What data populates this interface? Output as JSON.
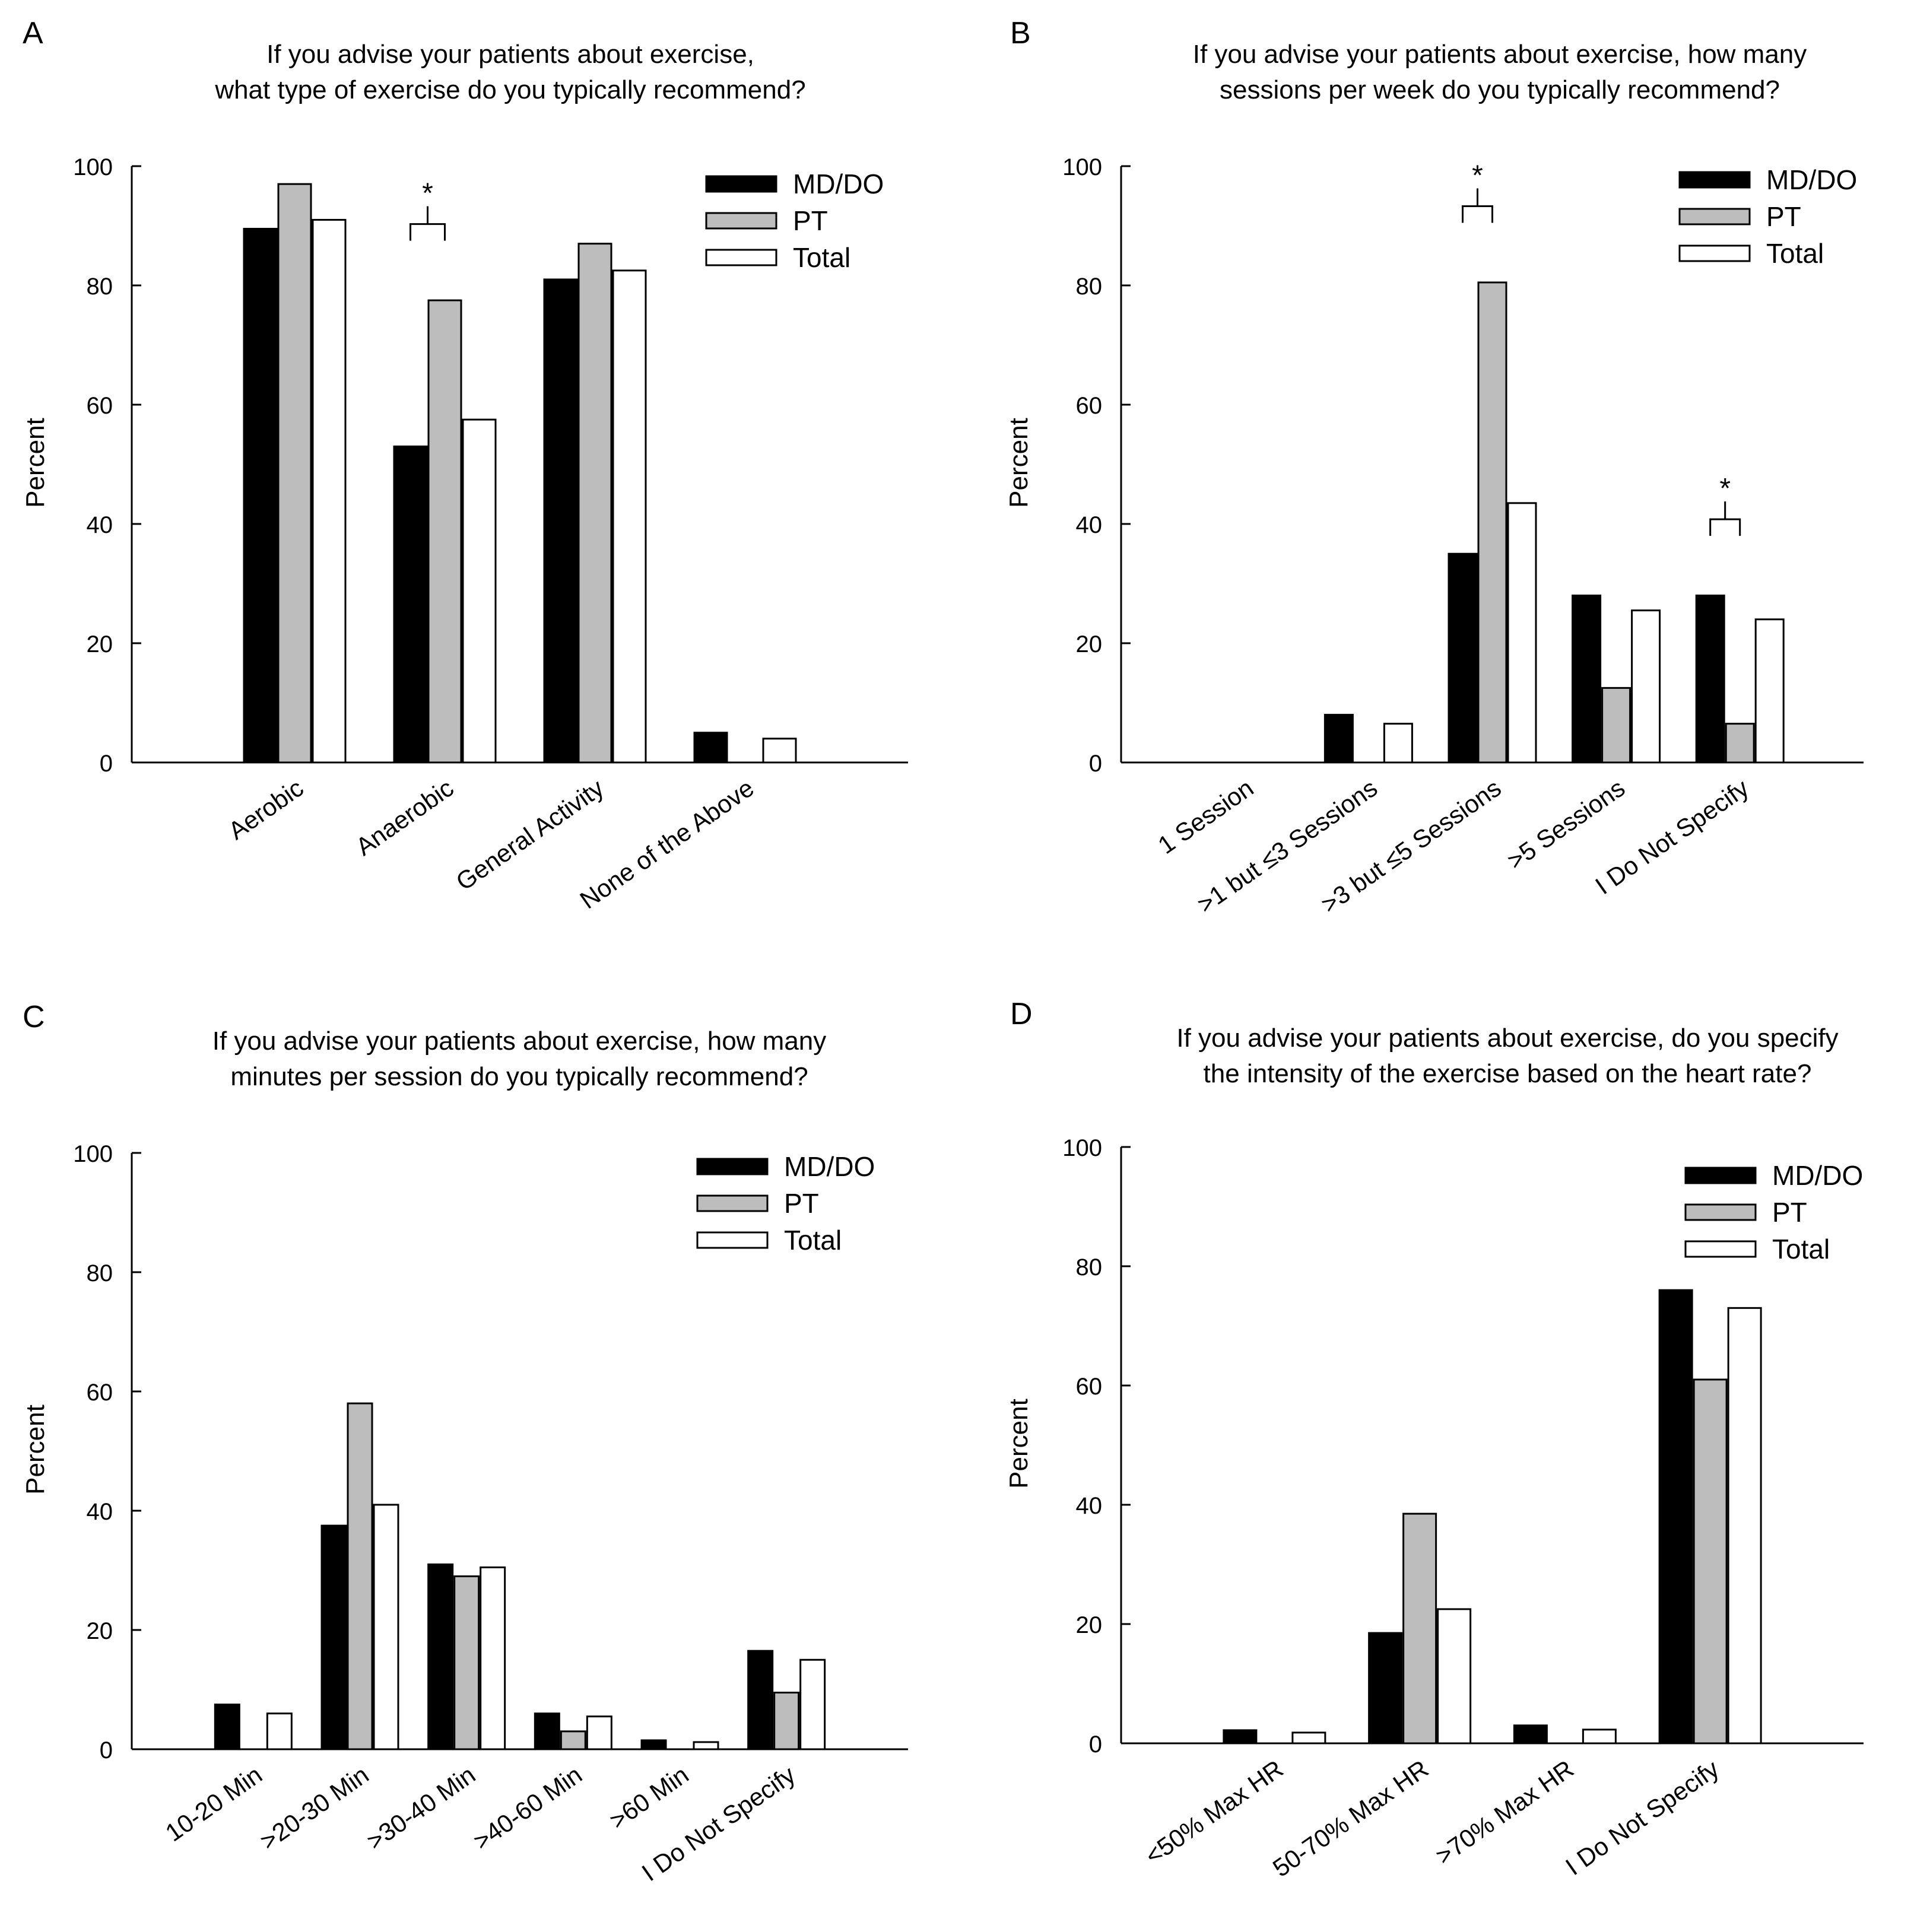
{
  "legend_labels": [
    "MD/DO",
    "PT",
    "Total"
  ],
  "chart_data": [
    {
      "panel": "A",
      "type": "bar",
      "title": [
        "If you advise your patients about exercise,",
        "what type of exercise do you typically recommend?"
      ],
      "ylabel": "Percent",
      "xlabel": "",
      "ylim": [
        0,
        100
      ],
      "yticks": [
        0,
        20,
        40,
        60,
        80,
        100
      ],
      "categories": [
        "Aerobic",
        "Anaerobic",
        "General Activity",
        "None of the Above"
      ],
      "series": [
        {
          "name": "MD/DO",
          "values": [
            89.5,
            53,
            81,
            5
          ]
        },
        {
          "name": "PT",
          "values": [
            97,
            77.5,
            87,
            0
          ]
        },
        {
          "name": "Total",
          "values": [
            91,
            57.5,
            82.5,
            4
          ]
        }
      ],
      "significance": [
        {
          "category": "Anaerobic",
          "label": "*"
        }
      ],
      "legend": "top-right"
    },
    {
      "panel": "B",
      "type": "bar",
      "title": [
        "If you advise your patients about exercise, how many",
        "sessions per week do you typically recommend?"
      ],
      "ylabel": "Percent",
      "xlabel": "",
      "ylim": [
        0,
        100
      ],
      "yticks": [
        0,
        20,
        40,
        60,
        80,
        100
      ],
      "categories": [
        "1 Session",
        ">1 but ≤3 Sessions",
        ">3 but ≤5 Sessions",
        ">5 Sessions",
        "I Do Not Specify"
      ],
      "series": [
        {
          "name": "MD/DO",
          "values": [
            0,
            8,
            35,
            28,
            28
          ]
        },
        {
          "name": "PT",
          "values": [
            0,
            0,
            80.5,
            12.5,
            6.5
          ]
        },
        {
          "name": "Total",
          "values": [
            0,
            6.5,
            43.5,
            25.5,
            24
          ]
        }
      ],
      "significance": [
        {
          "category": ">3 but ≤5 Sessions",
          "label": "*"
        },
        {
          "category": "I Do Not Specify",
          "label": "*"
        }
      ],
      "legend": "top-right"
    },
    {
      "panel": "C",
      "type": "bar",
      "title": [
        "If you advise your patients about exercise, how many",
        "minutes per session do you typically recommend?"
      ],
      "ylabel": "Percent",
      "xlabel": "",
      "ylim": [
        0,
        100
      ],
      "yticks": [
        0,
        20,
        40,
        60,
        80,
        100
      ],
      "categories": [
        "10-20 Min",
        ">20-30 Min",
        ">30-40 Min",
        ">40-60 Min",
        ">60 Min",
        "I Do Not Specify"
      ],
      "series": [
        {
          "name": "MD/DO",
          "values": [
            7.5,
            37.5,
            31,
            6,
            1.5,
            16.5
          ]
        },
        {
          "name": "PT",
          "values": [
            0,
            58,
            29,
            3,
            0,
            9.5
          ]
        },
        {
          "name": "Total",
          "values": [
            6,
            41,
            30.5,
            5.5,
            1.2,
            15
          ]
        }
      ],
      "significance": [],
      "legend": "top-right"
    },
    {
      "panel": "D",
      "type": "bar",
      "title": [
        "If you advise your patients about exercise, do you specify",
        "the intensity of the exercise based on the heart rate?"
      ],
      "ylabel": "Percent",
      "xlabel": "",
      "ylim": [
        0,
        100
      ],
      "yticks": [
        0,
        20,
        40,
        60,
        80,
        100
      ],
      "categories": [
        "<50% Max HR",
        "50-70% Max HR",
        ">70% Max HR",
        "I Do Not Specify"
      ],
      "series": [
        {
          "name": "MD/DO",
          "values": [
            2.2,
            18.5,
            3,
            76
          ]
        },
        {
          "name": "PT",
          "values": [
            0,
            38.5,
            0,
            61
          ]
        },
        {
          "name": "Total",
          "values": [
            1.8,
            22.5,
            2.3,
            73
          ]
        }
      ],
      "significance": [],
      "legend": "top-right"
    }
  ]
}
